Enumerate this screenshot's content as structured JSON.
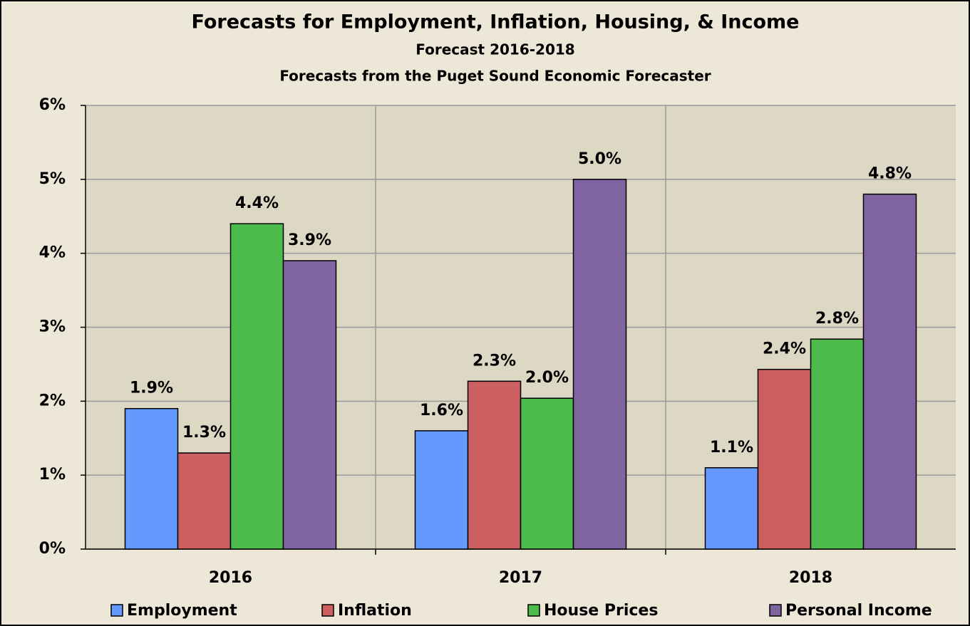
{
  "chart_data": {
    "type": "bar",
    "title": "Forecasts for Employment, Inflation, Housing, & Income",
    "subtitle": "Forecast 2016-2018",
    "caption": "Forecasts from the Puget Sound Economic Forecaster",
    "categories": [
      "2016",
      "2017",
      "2018"
    ],
    "series": [
      {
        "name": "Employment",
        "color": "#6699ff",
        "values": [
          1.9,
          1.6,
          1.1
        ],
        "value_labels": [
          "1.9%",
          "1.6%",
          "1.1%"
        ]
      },
      {
        "name": "Inflation",
        "color": "#cc5f5f",
        "values": [
          1.3,
          2.27,
          2.43
        ],
        "value_labels": [
          "1.3%",
          "2.3%",
          "2.4%"
        ]
      },
      {
        "name": "House Prices",
        "color": "#4cbb4c",
        "values": [
          4.4,
          2.04,
          2.84
        ],
        "value_labels": [
          "4.4%",
          "2.0%",
          "2.8%"
        ]
      },
      {
        "name": "Personal Income",
        "color": "#8064a2",
        "values": [
          3.9,
          5.0,
          4.8
        ],
        "value_labels": [
          "3.9%",
          "5.0%",
          "4.8%"
        ]
      }
    ],
    "ylim": [
      0,
      6
    ],
    "yticks": [
      {
        "value": 0,
        "label": "0%"
      },
      {
        "value": 1,
        "label": "1%"
      },
      {
        "value": 2,
        "label": "2%"
      },
      {
        "value": 3,
        "label": "3%"
      },
      {
        "value": 4,
        "label": "4%"
      },
      {
        "value": 5,
        "label": "5%"
      },
      {
        "value": 6,
        "label": "6%"
      }
    ],
    "grid": true,
    "legend": "bottom"
  }
}
